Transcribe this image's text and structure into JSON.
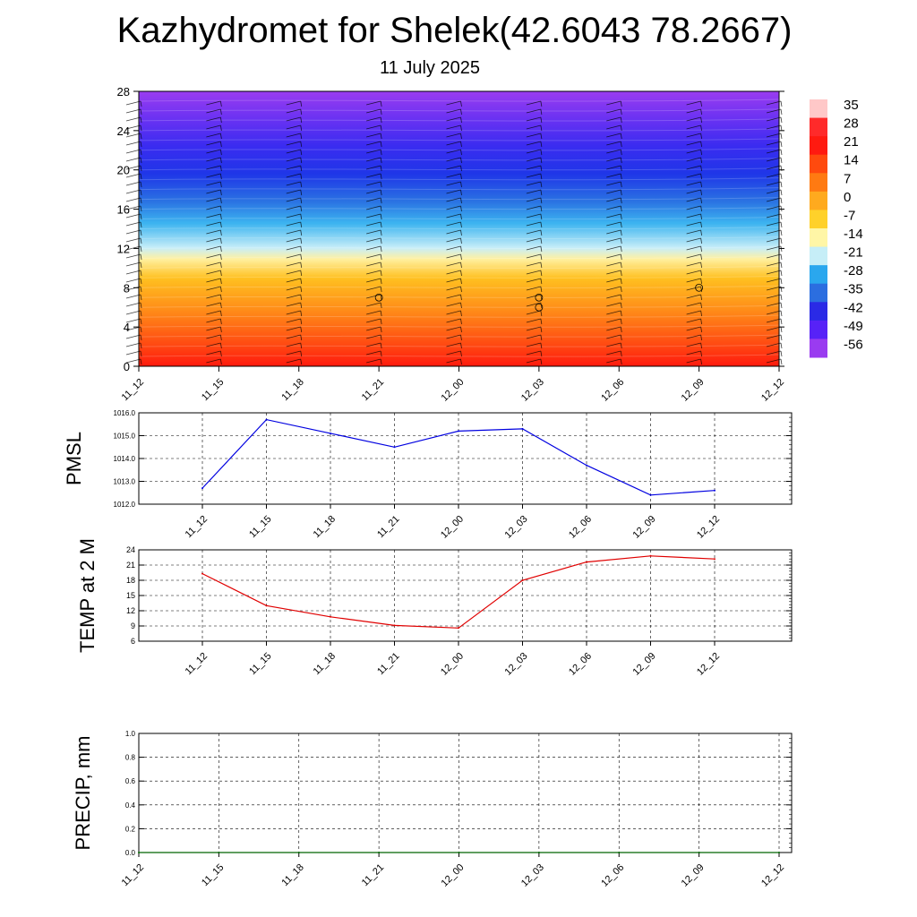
{
  "header": {
    "title": "Kazhydromet for Shelek(42.6043 78.2667)",
    "date": "11 July 2025"
  },
  "colors": {
    "temperature_scale": [
      "#9a3bf0",
      "#5722f7",
      "#2a2ae6",
      "#2b6ee0",
      "#2aa7ee",
      "#c6eef7",
      "#fff6a6",
      "#ffd12a",
      "#ffaa1e",
      "#ff7a12",
      "#ff4a0e",
      "#ff1a10",
      "#ff2a2a",
      "#ffc8c8"
    ],
    "pmsl_line": "#0000e0",
    "temp_line": "#e00000",
    "precip_line": "#006400"
  },
  "chart_data": [
    {
      "type": "heatmap",
      "y_ticks": [
        0,
        4,
        8,
        12,
        16,
        20,
        24,
        28
      ],
      "x_ticks": [
        "11_12",
        "11_15",
        "11_18",
        "11_21",
        "12_00",
        "12_03",
        "12_06",
        "12_09",
        "12_12"
      ],
      "ylim": [
        0,
        28
      ],
      "colorbar_labels": [
        "35",
        "28",
        "21",
        "14",
        "7",
        "0",
        "-7",
        "-14",
        "-21",
        "-28",
        "-35",
        "-42",
        "-49",
        "-56"
      ],
      "grid": false
    },
    {
      "type": "line",
      "ylabel": "PMSL",
      "x": [
        "11_12",
        "11_15",
        "11_18",
        "11_21",
        "12_00",
        "12_03",
        "12_06",
        "12_09",
        "12_12"
      ],
      "values": [
        1012.7,
        1015.7,
        1015.1,
        1014.5,
        1015.2,
        1015.3,
        1013.7,
        1012.4,
        1012.6
      ],
      "ylim": [
        1012.0,
        1016.0
      ],
      "y_ticks": [
        "1012.0",
        "1013.0",
        "1014.0",
        "1015.0",
        "1016.0"
      ],
      "grid": true
    },
    {
      "type": "line",
      "ylabel": "TEMP at 2 M",
      "x": [
        "11_12",
        "11_15",
        "11_18",
        "11_21",
        "12_00",
        "12_03",
        "12_06",
        "12_09",
        "12_12"
      ],
      "values": [
        19.3,
        13.0,
        10.8,
        9.1,
        8.6,
        18.0,
        21.6,
        22.8,
        22.2
      ],
      "ylim": [
        6,
        24
      ],
      "y_ticks": [
        "6",
        "9",
        "12",
        "15",
        "18",
        "21",
        "24"
      ],
      "grid": true
    },
    {
      "type": "line",
      "ylabel": "PRECIP, mm",
      "x": [
        "11_12",
        "11_15",
        "11_18",
        "11_21",
        "12_00",
        "12_03",
        "12_06",
        "12_09",
        "12_12"
      ],
      "values": [
        0,
        0,
        0,
        0,
        0,
        0,
        0,
        0,
        0
      ],
      "ylim": [
        0.0,
        1.0
      ],
      "y_ticks": [
        "0.0",
        "0.2",
        "0.4",
        "0.6",
        "0.8",
        "1.0"
      ],
      "grid": true
    }
  ]
}
